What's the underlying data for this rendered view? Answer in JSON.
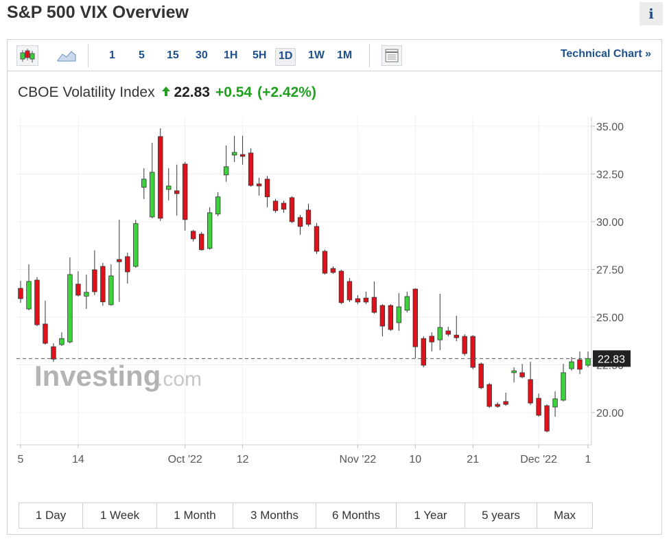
{
  "header": {
    "title": "S&P 500 VIX Overview",
    "info": "i"
  },
  "toolbar": {
    "intervals": [
      "1",
      "5",
      "15",
      "30",
      "1H",
      "5H",
      "1D",
      "1W",
      "1M"
    ],
    "selected": "1D",
    "link": "Technical Chart »"
  },
  "quote": {
    "name": "CBOE Volatility Index",
    "change": "+0.54",
    "change_pct": "(+2.42%)"
  },
  "watermark": {
    "brand": "Investing",
    "suffix": ".com"
  },
  "chart_data": {
    "type": "candlestick",
    "categories": [
      "5",
      null,
      null,
      null,
      null,
      null,
      null,
      "14",
      null,
      null,
      null,
      null,
      null,
      null,
      null,
      null,
      null,
      null,
      null,
      null,
      "Oct '22",
      null,
      null,
      null,
      null,
      null,
      null,
      "12",
      null,
      null,
      null,
      null,
      null,
      null,
      null,
      null,
      null,
      null,
      null,
      null,
      null,
      "Nov '22",
      null,
      null,
      null,
      null,
      null,
      null,
      "10",
      null,
      null,
      null,
      null,
      null,
      null,
      "21",
      null,
      null,
      null,
      null,
      null,
      null,
      null,
      "Dec '22",
      null,
      null,
      null,
      null,
      null,
      "1"
    ],
    "open": [
      26.51,
      25.43,
      26.94,
      24.64,
      23.45,
      23.56,
      23.7,
      26.73,
      26.1,
      27.48,
      27.66,
      25.65,
      28.02,
      28.17,
      27.66,
      31.8,
      30.25,
      34.46,
      31.69,
      31.62,
      33.02,
      29.5,
      29.35,
      28.6,
      30.4,
      32.45,
      33.49,
      33.52,
      33.6,
      31.98,
      32.23,
      31.08,
      30.97,
      31.26,
      30.22,
      30.61,
      29.75,
      28.45,
      27.55,
      27.41,
      26.87,
      25.97,
      26.0,
      26.04,
      25.61,
      25.61,
      24.71,
      25.36,
      26.47,
      23.88,
      24.0,
      23.81,
      24.28,
      24.06,
      23.99,
      23.99,
      22.55,
      21.47,
      20.43,
      20.58,
      22.09,
      22.09,
      21.73,
      20.75,
      20.36,
      20.29,
      20.65,
      22.3,
      22.77,
      22.48
    ],
    "high": [
      26.9,
      27.77,
      27.1,
      25.86,
      23.63,
      24.2,
      28.13,
      27.4,
      27.23,
      28.5,
      27.84,
      27.77,
      30.1,
      28.38,
      30.1,
      32.8,
      34.14,
      34.89,
      32.8,
      32.99,
      33.13,
      29.57,
      29.46,
      30.76,
      31.55,
      33.99,
      34.5,
      34.5,
      33.85,
      32.3,
      32.4,
      31.19,
      31.1,
      31.33,
      30.36,
      30.94,
      29.93,
      28.53,
      27.66,
      27.48,
      27.05,
      26.15,
      26.33,
      26.87,
      25.68,
      25.68,
      26.26,
      26.33,
      26.51,
      24.0,
      24.2,
      26.22,
      24.5,
      25.07,
      24.1,
      24.06,
      22.63,
      21.55,
      20.54,
      21.04,
      22.37,
      22.55,
      22.66,
      21.0,
      20.43,
      21.11,
      22.55,
      22.91,
      23.2,
      23.2
    ],
    "low": [
      25.75,
      25.36,
      24.53,
      23.56,
      22.66,
      23.49,
      23.63,
      26.08,
      25.43,
      26.15,
      25.6,
      25.6,
      25.8,
      26.76,
      27.59,
      31.19,
      30.18,
      30.04,
      31.12,
      30.32,
      29.53,
      28.96,
      28.49,
      28.53,
      30.29,
      32.09,
      33.13,
      32.99,
      31.83,
      31.37,
      30.76,
      30.47,
      30.47,
      29.93,
      29.32,
      29.75,
      28.31,
      27.23,
      27.27,
      25.68,
      25.79,
      25.68,
      25.68,
      25.18,
      23.99,
      24.28,
      24.28,
      25.25,
      22.84,
      22.37,
      23.2,
      23.27,
      23.99,
      23.74,
      22.98,
      22.27,
      21.22,
      20.25,
      20.25,
      20.36,
      21.58,
      21.8,
      20.4,
      19.78,
      18.96,
      19.78,
      20.58,
      22.2,
      22.02,
      22.37
    ],
    "close": [
      25.97,
      26.87,
      24.6,
      23.63,
      22.8,
      23.88,
      27.23,
      26.15,
      26.3,
      26.33,
      25.8,
      27.16,
      27.9,
      27.37,
      29.9,
      32.23,
      32.59,
      30.18,
      31.87,
      31.47,
      30.11,
      29.1,
      28.53,
      30.47,
      31.3,
      32.88,
      33.63,
      33.42,
      31.9,
      31.87,
      31.3,
      30.58,
      30.65,
      30.0,
      29.75,
      29.86,
      28.45,
      27.3,
      27.34,
      25.76,
      25.9,
      25.79,
      25.79,
      25.25,
      24.53,
      24.35,
      25.54,
      26.08,
      23.45,
      22.48,
      23.7,
      24.46,
      24.1,
      23.92,
      23.09,
      22.37,
      21.3,
      20.32,
      20.32,
      20.43,
      22.19,
      21.87,
      20.5,
      19.86,
      19.03,
      20.72,
      22.09,
      22.66,
      22.27,
      22.83
    ],
    "ylim": [
      18.31,
      35.5
    ],
    "yticks": [
      {
        "value": 20,
        "label": "20.00"
      },
      {
        "value": 22.5,
        "label": "22.50"
      },
      {
        "value": 25,
        "label": "25.00"
      },
      {
        "value": 27.5,
        "label": "27.50"
      },
      {
        "value": 30,
        "label": "30.00"
      },
      {
        "value": 32.5,
        "label": "32.50"
      },
      {
        "value": 35,
        "label": "35.00"
      }
    ],
    "grid": true,
    "up_color": "#3ad33a",
    "down_color": "#e3101a"
  },
  "ranges": [
    "1 Day",
    "1 Week",
    "1 Month",
    "3 Months",
    "6 Months",
    "1 Year",
    "5 years",
    "Max"
  ]
}
